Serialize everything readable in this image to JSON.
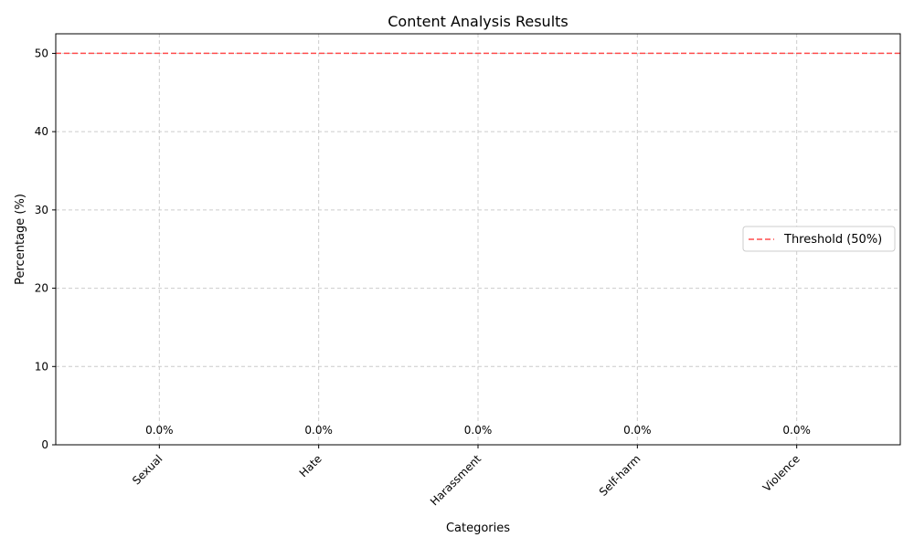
{
  "chart_data": {
    "type": "bar",
    "title": "Content Analysis Results",
    "xlabel": "Categories",
    "ylabel": "Percentage (%)",
    "categories": [
      "Sexual",
      "Hate",
      "Harassment",
      "Self-harm",
      "Violence"
    ],
    "values": [
      0.0,
      0.0,
      0.0,
      0.0,
      0.0
    ],
    "value_labels": [
      "0.0%",
      "0.0%",
      "0.0%",
      "0.0%",
      "0.0%"
    ],
    "ylim": [
      0,
      52.5
    ],
    "yticks": [
      0,
      10,
      20,
      30,
      40,
      50
    ],
    "ytick_labels": [
      "0",
      "10",
      "20",
      "30",
      "40",
      "50"
    ],
    "threshold": {
      "value": 50,
      "label": "Threshold (50%)",
      "color": "#ff4d4d",
      "style": "dashed"
    },
    "grid": true,
    "grid_color": "#cccccc",
    "legend_position": "center-right",
    "xtick_rotation_deg": 45
  }
}
